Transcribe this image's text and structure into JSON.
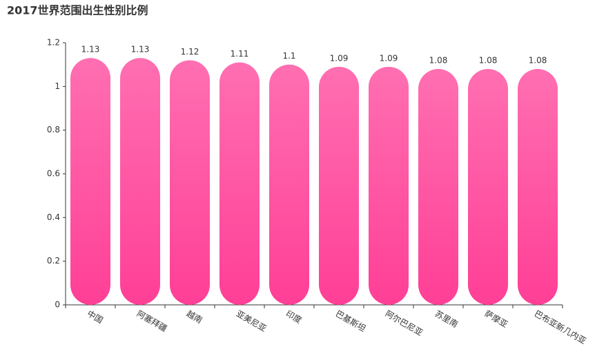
{
  "chart_data": {
    "type": "bar",
    "title": "2017世界范围出生性别比例",
    "categories": [
      "中国",
      "阿塞拜疆",
      "越南",
      "亚美尼亚",
      "印度",
      "巴基斯坦",
      "阿尔巴尼亚",
      "苏里南",
      "萨摩亚",
      "巴布亚新几内亚"
    ],
    "values": [
      1.13,
      1.13,
      1.12,
      1.11,
      1.1,
      1.09,
      1.09,
      1.08,
      1.08,
      1.08
    ],
    "ylim": [
      0,
      1.2
    ],
    "yticks": [
      0,
      0.2,
      0.4,
      0.6,
      0.8,
      1,
      1.2
    ]
  }
}
